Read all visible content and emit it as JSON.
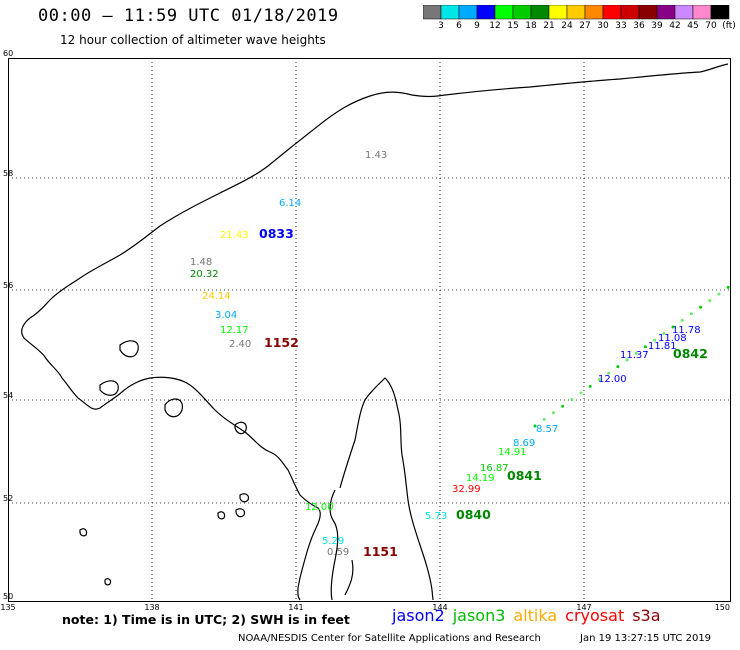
{
  "header": {
    "title": "00:00 – 11:59 UTC 01/18/2019",
    "subtitle": "12 hour collection of altimeter wave heights"
  },
  "colorbar": {
    "colors": [
      "#777777",
      "#00e5e5",
      "#00aaff",
      "#0000ff",
      "#00ff00",
      "#00cc00",
      "#008800",
      "#ffff00",
      "#ffcc00",
      "#ff8800",
      "#ff0000",
      "#cc0000",
      "#880000",
      "#880088",
      "#cc88ff",
      "#ff88cc",
      "#000000"
    ],
    "labels": [
      "3",
      "6",
      "9",
      "12",
      "15",
      "18",
      "21",
      "24",
      "27",
      "30",
      "33",
      "36",
      "39",
      "42",
      "45",
      "70",
      "(ft)"
    ]
  },
  "axes": {
    "lat_ticks": [
      "60",
      "58",
      "56",
      "54",
      "52",
      "50"
    ],
    "lon_ticks": [
      "135",
      "138",
      "141",
      "144",
      "147",
      "150"
    ]
  },
  "points": [
    {
      "label": "1.43",
      "color": "#777777"
    },
    {
      "label": "6.14",
      "color": "#00aaff"
    },
    {
      "label": "21.43",
      "color": "#ffff00"
    },
    {
      "label": "0833",
      "color": "#0000ff"
    },
    {
      "label": "1.48",
      "color": "#777777"
    },
    {
      "label": "20.32",
      "color": "#008800"
    },
    {
      "label": "24.14",
      "color": "#ffcc00"
    },
    {
      "label": "3.04",
      "color": "#00aaff"
    },
    {
      "label": "12.17",
      "color": "#00ff00"
    },
    {
      "label": "2.40",
      "color": "#777777"
    },
    {
      "label": "1152",
      "color": "#880000"
    },
    {
      "label": "12.00",
      "color": "#0000ff"
    },
    {
      "label": "11.37",
      "color": "#0000ff"
    },
    {
      "label": "11.81",
      "color": "#0000ff"
    },
    {
      "label": "11.08",
      "color": "#0000ff"
    },
    {
      "label": "11.78",
      "color": "#0000ff"
    },
    {
      "label": "0842",
      "color": "#008800"
    },
    {
      "label": "8.57",
      "color": "#00aaff"
    },
    {
      "label": "8.69",
      "color": "#00aaff"
    },
    {
      "label": "14.91",
      "color": "#00ff00"
    },
    {
      "label": "16.87",
      "color": "#00cc00"
    },
    {
      "label": "14.19",
      "color": "#00ff00"
    },
    {
      "label": "0841",
      "color": "#008800"
    },
    {
      "label": "32.99",
      "color": "#ff0000"
    },
    {
      "label": "5.73",
      "color": "#00e5e5"
    },
    {
      "label": "0840",
      "color": "#008800"
    },
    {
      "label": "12.00",
      "color": "#00ff00"
    },
    {
      "label": "5.29",
      "color": "#00e5e5"
    },
    {
      "label": "0.59",
      "color": "#777777"
    },
    {
      "label": "1151",
      "color": "#880000"
    }
  ],
  "note": "note: 1) Time is in UTC; 2) SWH is in feet",
  "legend": [
    {
      "label": "jason2",
      "color": "#0000ff"
    },
    {
      "label": "jason3",
      "color": "#00bb00"
    },
    {
      "label": "altika",
      "color": "#ffaa00"
    },
    {
      "label": "cryosat",
      "color": "#ff0000"
    },
    {
      "label": "s3a",
      "color": "#880000"
    }
  ],
  "credit": "NOAA/NESDIS Center for Satellite Applications and Research",
  "timestamp": "Jan 19 13:27:15 UTC 2019"
}
